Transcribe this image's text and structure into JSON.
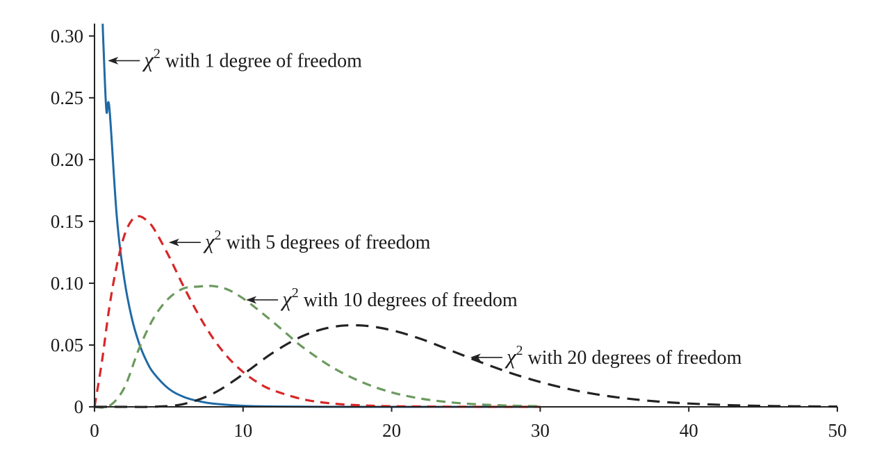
{
  "chart_data": {
    "type": "line",
    "title": "",
    "xlabel": "",
    "ylabel": "",
    "xlim": [
      0,
      50
    ],
    "ylim": [
      0,
      0.31
    ],
    "x_ticks": [
      0,
      10,
      20,
      30,
      40,
      50
    ],
    "x_tick_labels": [
      "0",
      "10",
      "20",
      "30",
      "40",
      "50"
    ],
    "y_ticks": [
      0,
      0.05,
      0.1,
      0.15,
      0.2,
      0.25,
      0.3
    ],
    "y_tick_labels": [
      "0",
      "0.05",
      "0.10",
      "0.15",
      "0.20",
      "0.25",
      "0.30"
    ],
    "grid": false,
    "series": [
      {
        "df": 1,
        "color": "#1f6aa5",
        "style": "solid",
        "x": [
          0.55,
          0.6,
          0.8,
          1,
          1.5,
          2,
          2.5,
          3,
          3.5,
          4,
          5,
          6,
          7,
          8,
          10,
          12,
          15,
          20,
          25,
          30
        ],
        "y": [
          0.3099,
          0.2933,
          0.2396,
          0.242,
          0.1539,
          0.1038,
          0.0723,
          0.0514,
          0.037,
          0.027,
          0.0146,
          0.0081,
          0.0046,
          0.0026,
          0.00085,
          0.00029,
          5.5e-05,
          2.4e-06,
          1e-07,
          0.0
        ]
      },
      {
        "df": 5,
        "color": "#d62728",
        "style": "dashed",
        "x": [
          0,
          0.5,
          1,
          1.5,
          2,
          2.5,
          3,
          3.5,
          4,
          5,
          6,
          7,
          8,
          9,
          10,
          11,
          12,
          14,
          16,
          18,
          20,
          25,
          30
        ],
        "y": [
          0,
          0.0366,
          0.0807,
          0.1144,
          0.1383,
          0.1508,
          0.1542,
          0.1509,
          0.144,
          0.122,
          0.0973,
          0.0746,
          0.0551,
          0.0398,
          0.0282,
          0.0196,
          0.0135,
          0.0062,
          0.0027,
          0.0012,
          0.0005,
          5e-05,
          0.0
        ]
      },
      {
        "df": 10,
        "color": "#6b9a5e",
        "style": "dashed",
        "x": [
          0,
          1,
          2,
          3,
          4,
          5,
          6,
          7,
          8,
          9,
          10,
          11,
          12,
          13,
          14,
          16,
          18,
          20,
          22,
          24,
          26,
          28,
          30
        ],
        "y": [
          0,
          0.0008,
          0.0153,
          0.0471,
          0.0722,
          0.0878,
          0.0958,
          0.0973,
          0.0977,
          0.0947,
          0.0877,
          0.0786,
          0.0688,
          0.0585,
          0.0484,
          0.032,
          0.02,
          0.0117,
          0.0066,
          0.0036,
          0.0019,
          0.001,
          0.0005
        ]
      },
      {
        "df": 20,
        "color": "#222222",
        "style": "dashed",
        "x": [
          0,
          2,
          4,
          6,
          8,
          10,
          12,
          14,
          16,
          18,
          20,
          22,
          24,
          26,
          28,
          30,
          32,
          34,
          36,
          38,
          40,
          43,
          46,
          50
        ],
        "y": [
          0,
          2e-07,
          0.0001,
          0.0023,
          0.0109,
          0.0263,
          0.0437,
          0.0572,
          0.0646,
          0.0658,
          0.062,
          0.0548,
          0.0455,
          0.0361,
          0.0274,
          0.0201,
          0.0142,
          0.0097,
          0.0065,
          0.0042,
          0.0027,
          0.0013,
          0.0006,
          0.0002
        ]
      }
    ],
    "annotations": [
      {
        "symbol": "χ",
        "superscript": "2",
        "text": " with 1 degree of freedom",
        "point_x": 0.9,
        "point_y": 0.28
      },
      {
        "symbol": "χ",
        "superscript": "2",
        "text": " with 5 degrees of freedom",
        "point_x": 5.0,
        "point_y": 0.133
      },
      {
        "symbol": "χ",
        "superscript": "2",
        "text": " with 10 degrees of freedom",
        "point_x": 10.2,
        "point_y": 0.0865
      },
      {
        "symbol": "χ",
        "superscript": "2",
        "text": " with 20 degrees of freedom",
        "point_x": 25.3,
        "point_y": 0.04
      }
    ]
  }
}
